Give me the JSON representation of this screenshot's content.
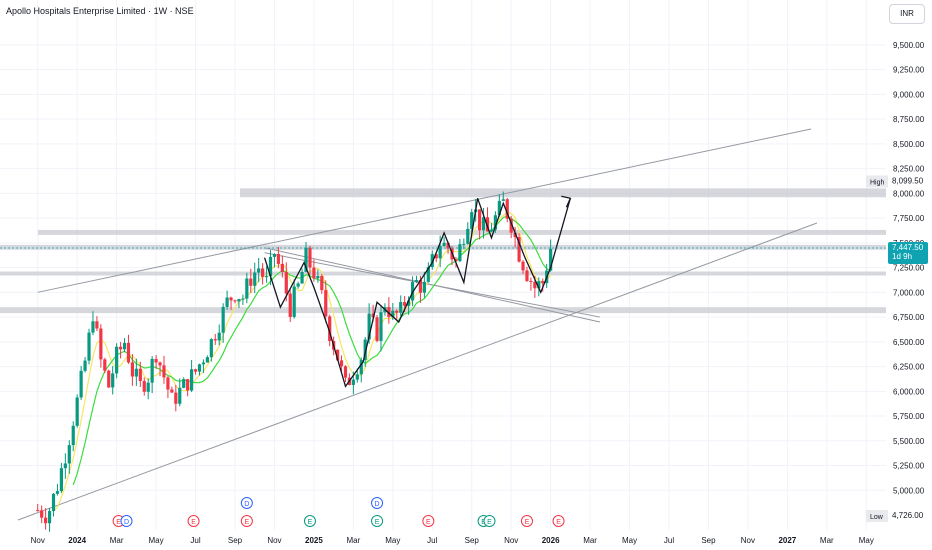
{
  "header": {
    "title": "Apollo Hospitals Enterprise Limited · 1W · NSE",
    "currency": "INR"
  },
  "price_tag": {
    "value": "7,447.50",
    "countdown": "1d 9h",
    "color": "#0fa3b1"
  },
  "high_tag": {
    "label": "High",
    "value": "8,099.50"
  },
  "low_tag": {
    "label": "Low",
    "value": "4,726.00"
  },
  "colors": {
    "up": "#089981",
    "down": "#f23645",
    "ma_fast": "#f5e663",
    "ma_slow": "#3ddc3d",
    "zone": "#c8cad1",
    "trendline": "#9598a1",
    "arrow_path": "#131722"
  },
  "chart_data": {
    "type": "candlestick",
    "y_ticks": [
      "9,500.00",
      "9,250.00",
      "9,000.00",
      "8,750.00",
      "8,500.00",
      "8,250.00",
      "8,000.00",
      "7,750.00",
      "7,500.00",
      "7,250.00",
      "7,000.00",
      "6,750.00",
      "6,500.00",
      "6,250.00",
      "6,000.00",
      "5,750.00",
      "5,500.00",
      "5,250.00",
      "5,000.00"
    ],
    "y_tick_values": [
      9500,
      9250,
      9000,
      8750,
      8500,
      8250,
      8000,
      7750,
      7500,
      7250,
      7000,
      6750,
      6500,
      6250,
      6000,
      5750,
      5500,
      5250,
      5000
    ],
    "ylim": [
      4700,
      9650
    ],
    "x_ticks": [
      {
        "label": "Nov",
        "t": 0,
        "bold": false
      },
      {
        "label": "2024",
        "t": 2,
        "bold": true
      },
      {
        "label": "Mar",
        "t": 4,
        "bold": false
      },
      {
        "label": "May",
        "t": 6,
        "bold": false
      },
      {
        "label": "Jul",
        "t": 8,
        "bold": false
      },
      {
        "label": "Sep",
        "t": 10,
        "bold": false
      },
      {
        "label": "Nov",
        "t": 12,
        "bold": false
      },
      {
        "label": "2025",
        "t": 14,
        "bold": true
      },
      {
        "label": "Mar",
        "t": 16,
        "bold": false
      },
      {
        "label": "May",
        "t": 18,
        "bold": false
      },
      {
        "label": "Jul",
        "t": 20,
        "bold": false
      },
      {
        "label": "Sep",
        "t": 22,
        "bold": false
      },
      {
        "label": "Nov",
        "t": 24,
        "bold": false
      },
      {
        "label": "2026",
        "t": 26,
        "bold": true
      },
      {
        "label": "Mar",
        "t": 28,
        "bold": false
      },
      {
        "label": "May",
        "t": 30,
        "bold": false
      },
      {
        "label": "Jul",
        "t": 32,
        "bold": false
      },
      {
        "label": "Sep",
        "t": 34,
        "bold": false
      },
      {
        "label": "Nov",
        "t": 36,
        "bold": false
      },
      {
        "label": "2027",
        "t": 38,
        "bold": true
      },
      {
        "label": "Mar",
        "t": 40,
        "bold": false
      },
      {
        "label": "May",
        "t": 42,
        "bold": false
      }
    ],
    "xlim": [
      -1.0,
      43.0
    ],
    "price_path": [
      [
        0.0,
        4800
      ],
      [
        0.5,
        4750
      ],
      [
        1.0,
        5050
      ],
      [
        1.5,
        5450
      ],
      [
        2.0,
        5900
      ],
      [
        2.5,
        6400
      ],
      [
        2.8,
        6800
      ],
      [
        3.2,
        6300
      ],
      [
        3.6,
        6050
      ],
      [
        4.0,
        6350
      ],
      [
        4.4,
        6500
      ],
      [
        4.8,
        6200
      ],
      [
        5.2,
        6050
      ],
      [
        5.6,
        6150
      ],
      [
        6.0,
        6400
      ],
      [
        6.4,
        6150
      ],
      [
        6.8,
        5900
      ],
      [
        7.2,
        6000
      ],
      [
        7.6,
        6100
      ],
      [
        8.0,
        6200
      ],
      [
        8.4,
        6350
      ],
      [
        8.8,
        6500
      ],
      [
        9.2,
        6700
      ],
      [
        9.6,
        6900
      ],
      [
        10.0,
        7000
      ],
      [
        10.4,
        6950
      ],
      [
        10.8,
        7150
      ],
      [
        11.2,
        7250
      ],
      [
        11.6,
        7100
      ],
      [
        12.0,
        7400
      ],
      [
        12.4,
        7150
      ],
      [
        12.8,
        6850
      ],
      [
        13.2,
        7050
      ],
      [
        13.6,
        7350
      ],
      [
        14.0,
        7200
      ],
      [
        14.4,
        6950
      ],
      [
        14.8,
        6600
      ],
      [
        15.2,
        6350
      ],
      [
        15.6,
        6050
      ],
      [
        16.0,
        6200
      ],
      [
        16.4,
        6350
      ],
      [
        16.8,
        6700
      ],
      [
        17.2,
        6600
      ],
      [
        17.6,
        6900
      ],
      [
        18.0,
        6750
      ],
      [
        18.4,
        6800
      ],
      [
        18.8,
        7000
      ],
      [
        19.2,
        7100
      ],
      [
        19.6,
        7050
      ],
      [
        20.0,
        7300
      ],
      [
        20.4,
        7500
      ],
      [
        20.8,
        7450
      ],
      [
        21.2,
        7300
      ],
      [
        21.6,
        7600
      ],
      [
        22.0,
        7900
      ],
      [
        22.4,
        7700
      ],
      [
        22.8,
        7600
      ],
      [
        23.2,
        7750
      ],
      [
        23.6,
        7900
      ],
      [
        24.0,
        7700
      ],
      [
        24.4,
        7400
      ],
      [
        24.8,
        7200
      ],
      [
        25.2,
        7050
      ],
      [
        25.6,
        7100
      ],
      [
        26.0,
        7447.5
      ]
    ]
  }
}
